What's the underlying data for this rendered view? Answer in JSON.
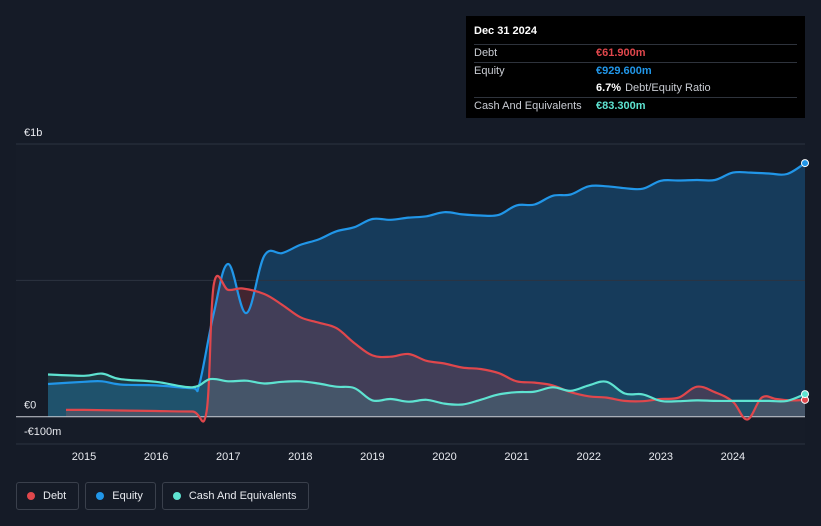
{
  "chart_data": {
    "type": "area",
    "y_tick_labels": [
      "€1b",
      "€0",
      "-€100m"
    ],
    "y_ticks": [
      1000,
      0,
      -100
    ],
    "ylim": [
      -100,
      1000
    ],
    "xlim": [
      2014.5,
      2025
    ],
    "x_tick_labels": [
      "2015",
      "2016",
      "2017",
      "2018",
      "2019",
      "2020",
      "2021",
      "2022",
      "2023",
      "2024"
    ],
    "x_ticks": [
      2015,
      2016,
      2017,
      2018,
      2019,
      2020,
      2021,
      2022,
      2023,
      2024
    ],
    "series": [
      {
        "name": "Debt",
        "color": "#e0474c",
        "x": [
          2014.75,
          2015.0,
          2015.5,
          2016.0,
          2016.5,
          2016.7,
          2016.8,
          2017.0,
          2017.2,
          2017.5,
          2017.75,
          2018.0,
          2018.25,
          2018.5,
          2018.75,
          2019.0,
          2019.25,
          2019.5,
          2019.75,
          2020.0,
          2020.25,
          2020.5,
          2020.75,
          2021.0,
          2021.25,
          2021.5,
          2021.75,
          2022.0,
          2022.25,
          2022.5,
          2022.75,
          2023.0,
          2023.25,
          2023.5,
          2023.75,
          2024.0,
          2024.2,
          2024.4,
          2024.6,
          2024.8,
          2025.0
        ],
        "values": [
          25,
          25,
          23,
          21,
          19,
          20,
          485,
          465,
          470,
          450,
          410,
          365,
          345,
          325,
          270,
          225,
          220,
          230,
          205,
          195,
          180,
          175,
          160,
          130,
          125,
          115,
          90,
          75,
          70,
          58,
          57,
          65,
          70,
          110,
          90,
          55,
          -10,
          70,
          65,
          60,
          62
        ]
      },
      {
        "name": "Equity",
        "color": "#2196e8",
        "x": [
          2014.5,
          2015.0,
          2015.25,
          2015.5,
          2016.0,
          2016.5,
          2016.6,
          2016.8,
          2017.0,
          2017.25,
          2017.5,
          2017.75,
          2018.0,
          2018.25,
          2018.5,
          2018.75,
          2019.0,
          2019.25,
          2019.5,
          2019.75,
          2020.0,
          2020.25,
          2020.5,
          2020.75,
          2021.0,
          2021.25,
          2021.5,
          2021.75,
          2022.0,
          2022.25,
          2022.5,
          2022.75,
          2023.0,
          2023.25,
          2023.5,
          2023.75,
          2024.0,
          2024.25,
          2024.5,
          2024.75,
          2025.0
        ],
        "values": [
          120,
          128,
          130,
          118,
          115,
          105,
          120,
          380,
          560,
          380,
          590,
          600,
          630,
          650,
          680,
          695,
          725,
          722,
          730,
          735,
          750,
          742,
          738,
          740,
          775,
          778,
          810,
          815,
          845,
          845,
          838,
          836,
          865,
          866,
          868,
          868,
          895,
          895,
          892,
          890,
          930
        ]
      },
      {
        "name": "Cash And Equivalents",
        "color": "#5ee3d1",
        "x": [
          2014.5,
          2015.0,
          2015.25,
          2015.5,
          2016.0,
          2016.5,
          2016.75,
          2017.0,
          2017.25,
          2017.5,
          2017.75,
          2018.0,
          2018.25,
          2018.5,
          2018.75,
          2019.0,
          2019.25,
          2019.5,
          2019.75,
          2020.0,
          2020.25,
          2020.5,
          2020.75,
          2021.0,
          2021.25,
          2021.5,
          2021.75,
          2022.0,
          2022.25,
          2022.5,
          2022.75,
          2023.0,
          2023.25,
          2023.5,
          2023.75,
          2024.0,
          2024.25,
          2024.5,
          2024.75,
          2025.0
        ],
        "values": [
          155,
          150,
          158,
          138,
          128,
          108,
          138,
          130,
          132,
          122,
          128,
          130,
          122,
          110,
          105,
          60,
          65,
          55,
          62,
          48,
          45,
          62,
          82,
          90,
          92,
          108,
          95,
          115,
          128,
          85,
          82,
          58,
          57,
          60,
          58,
          58,
          58,
          58,
          58,
          83
        ]
      }
    ],
    "tooltip": {
      "date": "Dec 31 2024",
      "rows": [
        {
          "label": "Debt",
          "value": "€61.900m",
          "color": "#e0474c"
        },
        {
          "label": "Equity",
          "value": "€929.600m",
          "color": "#2196e8"
        },
        {
          "label": "",
          "value": "6.7%",
          "value_suffix": "Debt/Equity Ratio",
          "color": "#ffffff"
        },
        {
          "label": "Cash And Equivalents",
          "value": "€83.300m",
          "color": "#5ee3d1"
        }
      ]
    },
    "legend": [
      {
        "label": "Debt",
        "color": "#e0474c"
      },
      {
        "label": "Equity",
        "color": "#2196e8"
      },
      {
        "label": "Cash And Equivalents",
        "color": "#5ee3d1"
      }
    ]
  }
}
